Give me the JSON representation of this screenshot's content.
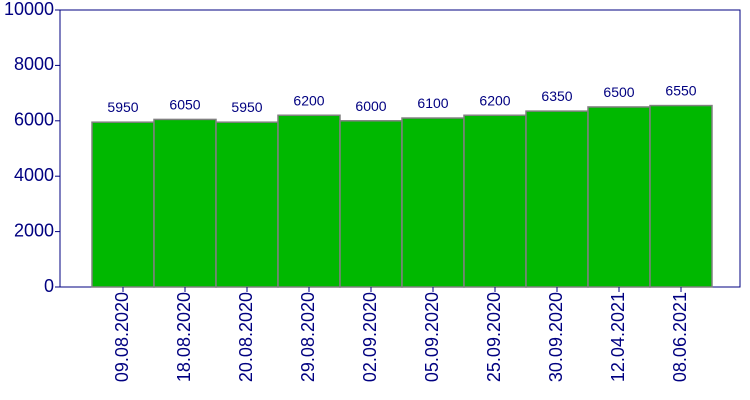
{
  "chart_data": {
    "type": "bar",
    "categories": [
      "09.08.2020",
      "18.08.2020",
      "20.08.2020",
      "29.08.2020",
      "02.09.2020",
      "05.09.2020",
      "25.09.2020",
      "30.09.2020",
      "12.04.2021",
      "08.06.2021"
    ],
    "values": [
      5950,
      6050,
      5950,
      6200,
      6000,
      6100,
      6200,
      6350,
      6500,
      6550
    ],
    "color": "#00b800",
    "ylim": [
      0,
      10000
    ],
    "yticks": [
      0,
      2000,
      4000,
      6000,
      8000,
      10000
    ]
  }
}
